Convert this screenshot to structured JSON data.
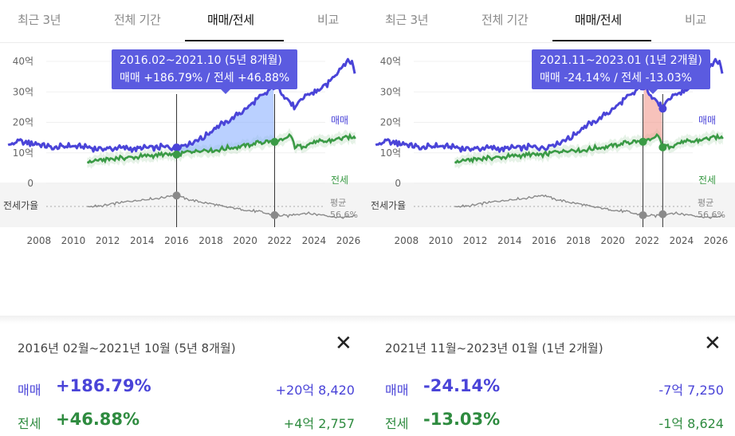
{
  "colors": {
    "sale": "#4a44d8",
    "jeonse": "#3a9a45",
    "ratio": "#8a8a8a",
    "tooltip_bg": "#5b5be0",
    "up_fill": "#8cb1ff",
    "down_fill": "#f19a8e"
  },
  "close_icon": "close-icon",
  "axis": {
    "y_ticks": [
      "40억",
      "30억",
      "20억",
      "10억",
      "0"
    ],
    "x_ticks": [
      "2008",
      "2010",
      "2012",
      "2014",
      "2016",
      "2018",
      "2020",
      "2022",
      "2024",
      "2026"
    ],
    "ratio_label": "전세가율",
    "avg_label_1": "평균",
    "avg_label_2": "56.6%"
  },
  "legend": {
    "sale": "매매",
    "jeonse": "전세"
  },
  "panels": [
    {
      "tabs": [
        {
          "label": "최근 3년",
          "active": false
        },
        {
          "label": "전체 기간",
          "active": false
        },
        {
          "label": "매매/전세",
          "active": true
        },
        {
          "label": "비교",
          "active": false
        }
      ],
      "tooltip": {
        "line1": "2016.02~2021.10 (5년 8개월)",
        "line2": "매매 +186.79%  /  전세 +46.88%"
      },
      "range": {
        "start": 2016.1,
        "end": 2021.8,
        "direction": "up"
      },
      "info": {
        "range_text": "2016년 02월~2021년 10월 (5년 8개월)",
        "sale_label": "매매",
        "sale_pct": "+186.79%",
        "sale_amt": "+20억 8,420",
        "jeon_label": "전세",
        "jeon_pct": "+46.88%",
        "jeon_amt": "+4억 2,757"
      }
    },
    {
      "tabs": [
        {
          "label": "최근 3년",
          "active": false
        },
        {
          "label": "전체 기간",
          "active": false
        },
        {
          "label": "매매/전세",
          "active": true
        },
        {
          "label": "비교",
          "active": false
        }
      ],
      "tooltip": {
        "line1": "2021.11~2023.01 (1년 2개월)",
        "line2": "매매 -24.14%  /  전세 -13.03%"
      },
      "range": {
        "start": 2021.85,
        "end": 2023.0,
        "direction": "down"
      },
      "info": {
        "range_text": "2021년 11월~2023년 01월 (1년 2개월)",
        "sale_label": "매매",
        "sale_pct": "-24.14%",
        "sale_amt": "-7억 7,250",
        "jeon_label": "전세",
        "jeon_pct": "-13.03%",
        "jeon_amt": "-1억 8,624"
      }
    }
  ],
  "chart_data": {
    "type": "line",
    "x_range": [
      2006.2,
      2026.6
    ],
    "ylim": [
      0,
      42
    ],
    "series": [
      {
        "name": "매매",
        "points": [
          [
            2006.3,
            12
          ],
          [
            2006.8,
            13.8
          ],
          [
            2007.5,
            13.2
          ],
          [
            2008.2,
            12.8
          ],
          [
            2009,
            11.5
          ],
          [
            2009.8,
            12.6
          ],
          [
            2010.5,
            12
          ],
          [
            2011.2,
            11.6
          ],
          [
            2012,
            11.2
          ],
          [
            2012.8,
            11.8
          ],
          [
            2013.6,
            11.2
          ],
          [
            2014.4,
            11.6
          ],
          [
            2015.2,
            12
          ],
          [
            2016,
            11.6
          ],
          [
            2016.8,
            13
          ],
          [
            2017.6,
            14.8
          ],
          [
            2018.4,
            18.5
          ],
          [
            2019.2,
            20.5
          ],
          [
            2020,
            24
          ],
          [
            2020.8,
            27.5
          ],
          [
            2021.3,
            29.5
          ],
          [
            2021.8,
            32
          ],
          [
            2022.2,
            30
          ],
          [
            2022.6,
            27
          ],
          [
            2023,
            24.5
          ],
          [
            2023.6,
            29
          ],
          [
            2024.2,
            30
          ],
          [
            2024.8,
            32
          ],
          [
            2025.2,
            35
          ],
          [
            2025.7,
            38
          ],
          [
            2026,
            40
          ],
          [
            2026.3,
            40
          ],
          [
            2026.5,
            35
          ]
        ]
      },
      {
        "name": "전세",
        "points": [
          [
            2010.9,
            7
          ],
          [
            2011.6,
            7.6
          ],
          [
            2012.5,
            8.2
          ],
          [
            2013.3,
            8.6
          ],
          [
            2014.2,
            8.8
          ],
          [
            2015,
            9.4
          ],
          [
            2016,
            9.3
          ],
          [
            2016.8,
            10.4
          ],
          [
            2017.6,
            10.8
          ],
          [
            2018.4,
            11
          ],
          [
            2019.2,
            11.6
          ],
          [
            2020,
            12.2
          ],
          [
            2020.8,
            13.2
          ],
          [
            2021.4,
            13.8
          ],
          [
            2021.8,
            13.6
          ],
          [
            2022.3,
            14
          ],
          [
            2022.7,
            15.8
          ],
          [
            2023,
            11.8
          ],
          [
            2023.5,
            12.4
          ],
          [
            2024,
            13.4
          ],
          [
            2024.6,
            13.6
          ],
          [
            2025.2,
            14.2
          ],
          [
            2025.8,
            14.8
          ],
          [
            2026.5,
            15
          ]
        ]
      },
      {
        "name": "전세가율",
        "points": [
          [
            2010.9,
            57
          ],
          [
            2011.8,
            58
          ],
          [
            2012.6,
            61
          ],
          [
            2013.4,
            63
          ],
          [
            2014.2,
            65
          ],
          [
            2015.2,
            67
          ],
          [
            2016,
            70
          ],
          [
            2016.8,
            65
          ],
          [
            2017.6,
            62
          ],
          [
            2018.4,
            59
          ],
          [
            2019.2,
            56
          ],
          [
            2020,
            54
          ],
          [
            2020.8,
            52
          ],
          [
            2021.8,
            48
          ],
          [
            2022.6,
            47
          ],
          [
            2023,
            49
          ],
          [
            2023.6,
            50
          ],
          [
            2024.2,
            49
          ],
          [
            2024.8,
            48
          ],
          [
            2025.6,
            45
          ],
          [
            2026.5,
            47
          ]
        ]
      }
    ],
    "ratio_average": 56.6
  }
}
